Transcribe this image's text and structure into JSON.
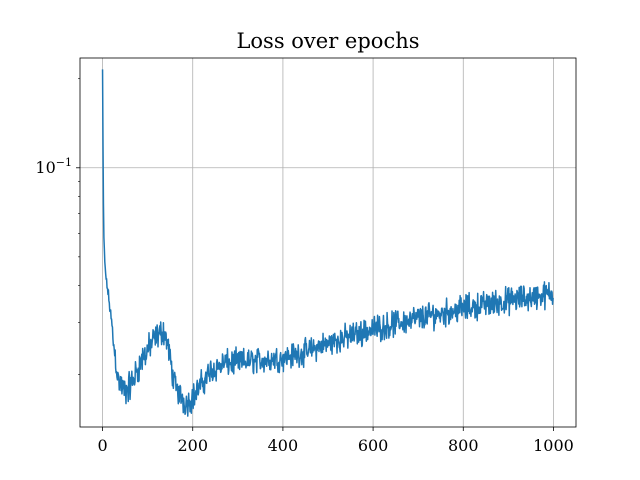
{
  "chart_data": {
    "type": "line",
    "title": "Loss over epochs",
    "xlabel": "",
    "ylabel": "",
    "xscale": "linear",
    "yscale": "log",
    "xlim": [
      -50,
      1050
    ],
    "ylim": [
      0.0133,
      0.235
    ],
    "grid": true,
    "x_ticks": [
      0,
      200,
      400,
      600,
      800,
      1000
    ],
    "x_tick_labels": [
      "0",
      "200",
      "400",
      "600",
      "800",
      "1000"
    ],
    "y_ticks": [
      0.1
    ],
    "y_tick_labels": [
      {
        "base": "10",
        "exp": "−1"
      }
    ],
    "series": [
      {
        "name": "",
        "color": "#1f77b4",
        "points": [
          [
            0,
            0.215
          ],
          [
            1,
            0.12
          ],
          [
            2,
            0.075
          ],
          [
            3,
            0.058
          ],
          [
            5,
            0.048
          ],
          [
            8,
            0.042
          ],
          [
            12,
            0.038
          ],
          [
            16,
            0.034
          ],
          [
            20,
            0.03
          ],
          [
            25,
            0.025
          ],
          [
            30,
            0.022
          ],
          [
            35,
            0.019
          ],
          [
            40,
            0.0185
          ],
          [
            45,
            0.0178
          ],
          [
            50,
            0.0175
          ],
          [
            55,
            0.0178
          ],
          [
            60,
            0.0182
          ],
          [
            65,
            0.0188
          ],
          [
            70,
            0.0195
          ],
          [
            80,
            0.0212
          ],
          [
            90,
            0.0228
          ],
          [
            100,
            0.0242
          ],
          [
            110,
            0.0255
          ],
          [
            120,
            0.0268
          ],
          [
            130,
            0.0278
          ],
          [
            135,
            0.028
          ],
          [
            140,
            0.027
          ],
          [
            145,
            0.025
          ],
          [
            150,
            0.0225
          ],
          [
            155,
            0.0202
          ],
          [
            160,
            0.0185
          ],
          [
            170,
            0.0172
          ],
          [
            180,
            0.0163
          ],
          [
            185,
            0.016
          ],
          [
            190,
            0.0162
          ],
          [
            200,
            0.0168
          ],
          [
            210,
            0.0176
          ],
          [
            220,
            0.0186
          ],
          [
            230,
            0.0196
          ],
          [
            240,
            0.0205
          ],
          [
            250,
            0.021
          ],
          [
            270,
            0.0218
          ],
          [
            300,
            0.022
          ],
          [
            330,
            0.0222
          ],
          [
            360,
            0.0224
          ],
          [
            400,
            0.0228
          ],
          [
            450,
            0.0238
          ],
          [
            500,
            0.0255
          ],
          [
            550,
            0.027
          ],
          [
            600,
            0.0285
          ],
          [
            650,
            0.0298
          ],
          [
            700,
            0.031
          ],
          [
            750,
            0.0322
          ],
          [
            800,
            0.0335
          ],
          [
            850,
            0.0345
          ],
          [
            900,
            0.0355
          ],
          [
            950,
            0.0365
          ],
          [
            1000,
            0.0375
          ]
        ],
        "noise": [
          [
            0,
            0.0
          ],
          [
            30,
            0.06
          ],
          [
            60,
            0.07
          ],
          [
            150,
            0.055
          ],
          [
            200,
            0.06
          ],
          [
            400,
            0.055
          ],
          [
            1000,
            0.06
          ]
        ]
      }
    ]
  }
}
